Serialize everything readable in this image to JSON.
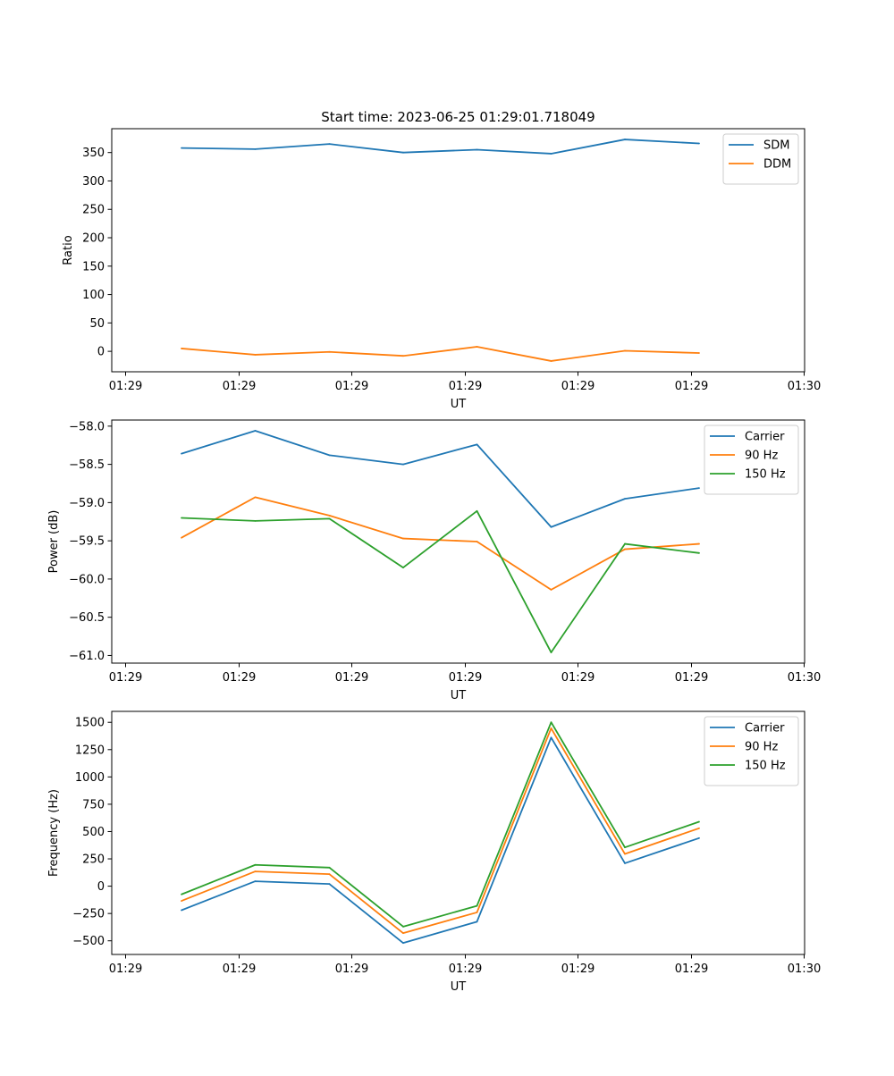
{
  "figure": {
    "title": "Start time: 2023-06-25 01:29:01.718049"
  },
  "chart_data": [
    {
      "type": "line",
      "xlabel": "UT",
      "ylabel": "Ratio",
      "x_tick_labels": [
        "01:29",
        "01:29",
        "01:29",
        "01:29",
        "01:29",
        "01:29",
        "01:30"
      ],
      "y_ticks": [
        0,
        50,
        100,
        150,
        200,
        250,
        300,
        350
      ],
      "y_tick_labels": [
        "0",
        "50",
        "100",
        "150",
        "200",
        "250",
        "300",
        "350"
      ],
      "ylim": [
        -36,
        392
      ],
      "legend_position": "top-right",
      "grid": false,
      "series": [
        {
          "name": "SDM",
          "color": "#1f77b4",
          "values": [
            358,
            356,
            365,
            350,
            355,
            348,
            373,
            366
          ]
        },
        {
          "name": "DDM",
          "color": "#ff7f0e",
          "values": [
            5,
            -6,
            -1,
            -8,
            8,
            -17,
            1,
            -3
          ]
        }
      ]
    },
    {
      "type": "line",
      "xlabel": "UT",
      "ylabel": "Power (dB)",
      "x_tick_labels": [
        "01:29",
        "01:29",
        "01:29",
        "01:29",
        "01:29",
        "01:29",
        "01:30"
      ],
      "y_ticks": [
        -61.0,
        -60.5,
        -60.0,
        -59.5,
        -59.0,
        -58.5,
        -58.0
      ],
      "y_tick_labels": [
        "−61.0",
        "−60.5",
        "−60.0",
        "−59.5",
        "−59.0",
        "−58.5",
        "−58.0"
      ],
      "ylim": [
        -61.1,
        -57.92
      ],
      "legend_position": "top-right",
      "grid": false,
      "series": [
        {
          "name": "Carrier",
          "color": "#1f77b4",
          "values": [
            -58.36,
            -58.06,
            -58.38,
            -58.5,
            -58.24,
            -59.32,
            -58.95,
            -58.81
          ]
        },
        {
          "name": "90 Hz",
          "color": "#ff7f0e",
          "values": [
            -59.46,
            -58.93,
            -59.17,
            -59.47,
            -59.51,
            -60.14,
            -59.61,
            -59.54
          ]
        },
        {
          "name": "150 Hz",
          "color": "#2ca02c",
          "values": [
            -59.2,
            -59.24,
            -59.21,
            -59.85,
            -59.11,
            -60.96,
            -59.54,
            -59.66
          ]
        }
      ]
    },
    {
      "type": "line",
      "xlabel": "UT",
      "ylabel": "Frequency (Hz)",
      "x_tick_labels": [
        "01:29",
        "01:29",
        "01:29",
        "01:29",
        "01:29",
        "01:29",
        "01:30"
      ],
      "y_ticks": [
        -500,
        -250,
        0,
        250,
        500,
        750,
        1000,
        1250,
        1500
      ],
      "y_tick_labels": [
        "−500",
        "−250",
        "0",
        "250",
        "500",
        "750",
        "1000",
        "1250",
        "1500"
      ],
      "ylim": [
        -625,
        1600
      ],
      "legend_position": "top-right",
      "grid": false,
      "series": [
        {
          "name": "Carrier",
          "color": "#1f77b4",
          "values": [
            -220,
            45,
            20,
            -520,
            -325,
            1360,
            210,
            440
          ]
        },
        {
          "name": "90 Hz",
          "color": "#ff7f0e",
          "values": [
            -135,
            135,
            110,
            -430,
            -240,
            1445,
            295,
            530
          ]
        },
        {
          "name": "150 Hz",
          "color": "#2ca02c",
          "values": [
            -75,
            195,
            170,
            -370,
            -180,
            1500,
            355,
            590
          ]
        }
      ]
    }
  ]
}
